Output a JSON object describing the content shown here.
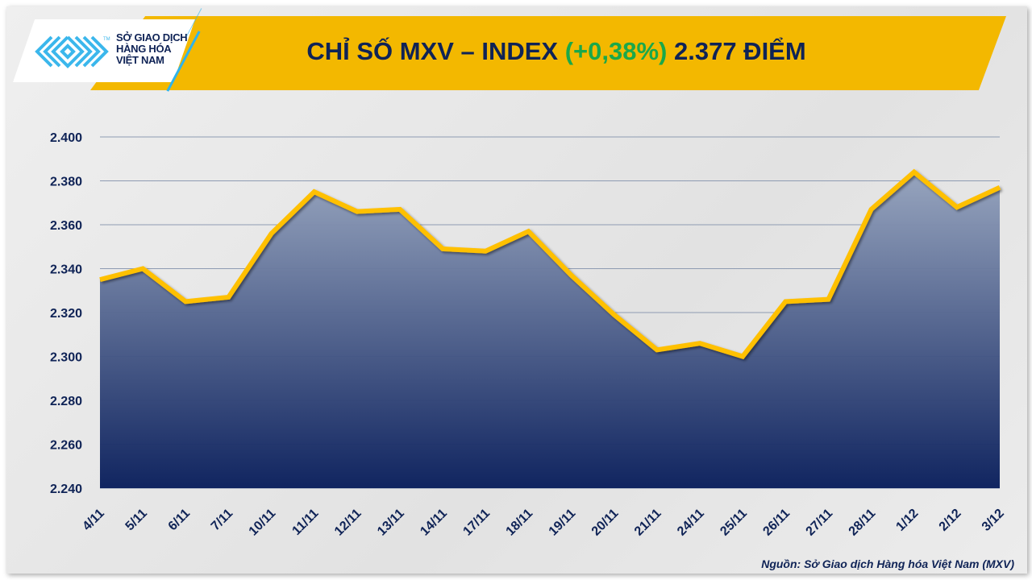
{
  "header": {
    "title_main": "CHỈ SỐ MXV – INDEX ",
    "title_change": "(+0,38%)",
    "title_value": " 2.377 ĐIỂM",
    "logo_lines": [
      "SỞ GIAO DỊCH",
      "HÀNG HÓA",
      "VIỆT NAM"
    ],
    "logo_tm": "TM"
  },
  "source": "Nguồn: Sở Giao dịch Hàng hóa Việt Nam (MXV)",
  "colors": {
    "line": "#FFC000",
    "area_top": "#95a3bd",
    "area_bottom": "#0a1f5c",
    "banner": "#F3B800",
    "positive": "#1AA84A",
    "text": "#0F2356"
  },
  "chart_data": {
    "type": "area",
    "title": "CHỈ SỐ MXV – INDEX (+0,38%) 2.377 ĐIỂM",
    "categories": [
      "4/11",
      "5/11",
      "6/11",
      "7/11",
      "10/11",
      "11/11",
      "12/11",
      "13/11",
      "14/11",
      "17/11",
      "18/11",
      "19/11",
      "20/11",
      "21/11",
      "24/11",
      "25/11",
      "26/11",
      "27/11",
      "28/11",
      "1/12",
      "2/12",
      "3/12"
    ],
    "values": [
      2.335,
      2.34,
      2.325,
      2.327,
      2.356,
      2.375,
      2.366,
      2.367,
      2.349,
      2.348,
      2.357,
      2.337,
      2.319,
      2.303,
      2.306,
      2.3,
      2.325,
      2.326,
      2.367,
      2.384,
      2.368,
      2.377
    ],
    "ylim": [
      2.24,
      2.4
    ],
    "yticks": [
      "2.240",
      "2.260",
      "2.280",
      "2.300",
      "2.320",
      "2.340",
      "2.360",
      "2.380",
      "2.400"
    ],
    "grid": true,
    "legend": "none"
  }
}
